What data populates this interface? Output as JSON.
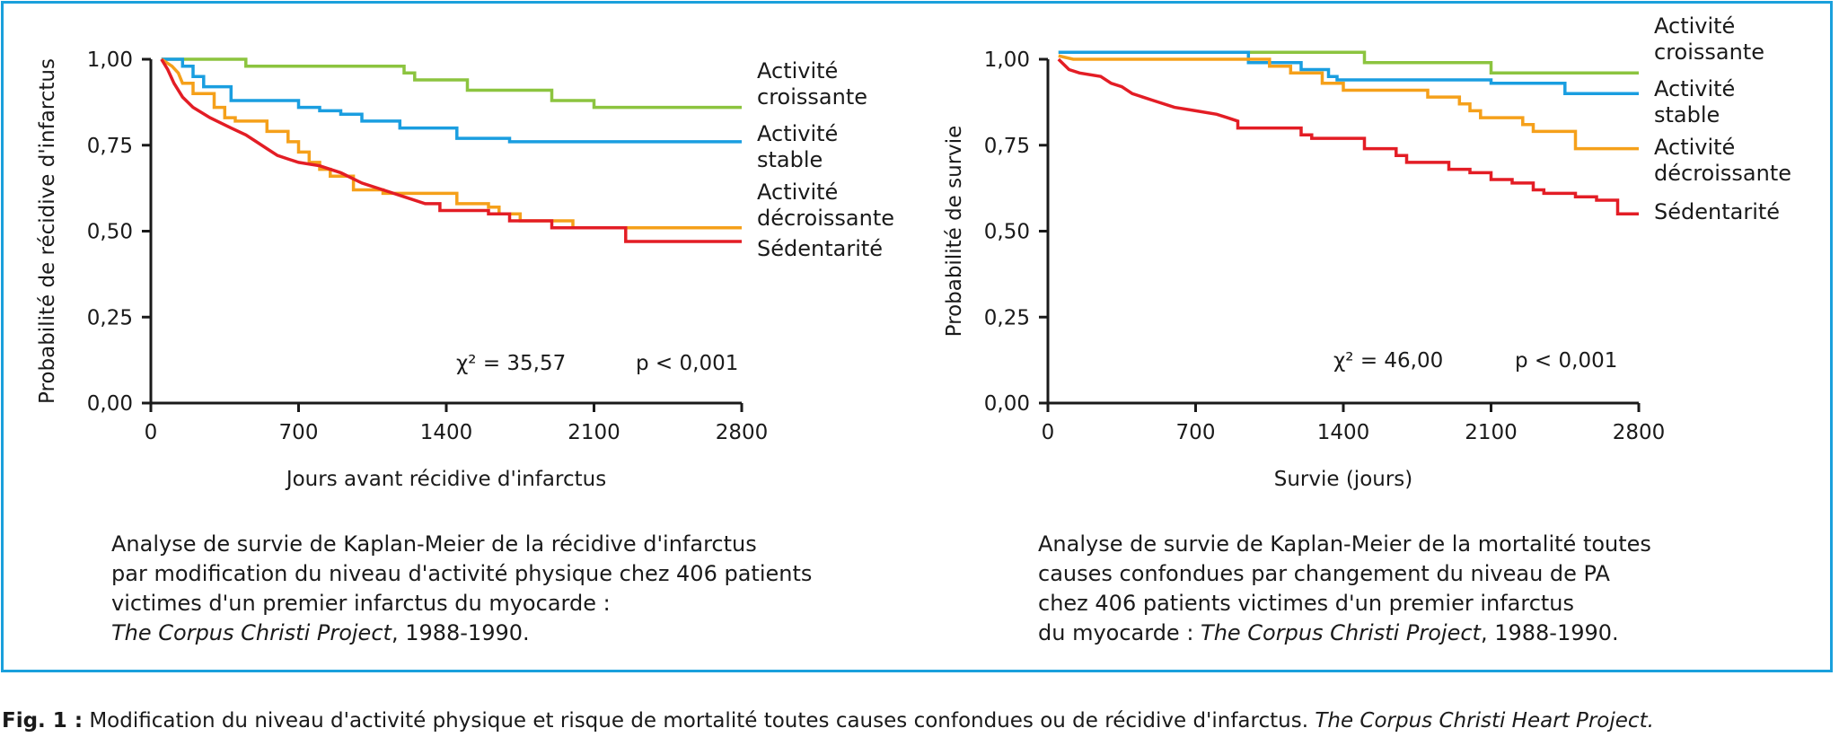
{
  "colors": {
    "frame": "#1aa0dc",
    "green": "#8cc43f",
    "blue": "#1a9ee0",
    "orange": "#f5a01a",
    "red": "#e31d25"
  },
  "chart_data": [
    {
      "type": "line",
      "ylabel": "Probabilité de récidive d'infarctus",
      "xlabel": "Jours avant récidive d'infarctus",
      "xlim": [
        0,
        2800
      ],
      "ylim": [
        0,
        1
      ],
      "xticks": [
        "0",
        "700",
        "1400",
        "2100",
        "2800"
      ],
      "yticks": [
        "0,00",
        "0,25",
        "0,50",
        "0,75",
        "1,00"
      ],
      "stat": "χ² = 35,57",
      "pvalue": "p < 0,001",
      "series": [
        {
          "name": "Activité croissante",
          "color": "#8cc43f",
          "points": [
            [
              50,
              1.0
            ],
            [
              450,
              1.0
            ],
            [
              450,
              0.98
            ],
            [
              1200,
              0.98
            ],
            [
              1200,
              0.96
            ],
            [
              1250,
              0.96
            ],
            [
              1250,
              0.94
            ],
            [
              1500,
              0.94
            ],
            [
              1500,
              0.91
            ],
            [
              1900,
              0.91
            ],
            [
              1900,
              0.88
            ],
            [
              2100,
              0.88
            ],
            [
              2100,
              0.86
            ],
            [
              2800,
              0.86
            ]
          ]
        },
        {
          "name": "Activité stable",
          "color": "#1a9ee0",
          "points": [
            [
              50,
              1.0
            ],
            [
              150,
              1.0
            ],
            [
              150,
              0.98
            ],
            [
              200,
              0.98
            ],
            [
              200,
              0.95
            ],
            [
              250,
              0.95
            ],
            [
              250,
              0.92
            ],
            [
              380,
              0.92
            ],
            [
              380,
              0.88
            ],
            [
              700,
              0.88
            ],
            [
              700,
              0.86
            ],
            [
              800,
              0.86
            ],
            [
              800,
              0.85
            ],
            [
              900,
              0.85
            ],
            [
              900,
              0.84
            ],
            [
              1000,
              0.84
            ],
            [
              1000,
              0.82
            ],
            [
              1180,
              0.82
            ],
            [
              1180,
              0.8
            ],
            [
              1450,
              0.8
            ],
            [
              1450,
              0.77
            ],
            [
              1700,
              0.77
            ],
            [
              1700,
              0.76
            ],
            [
              2800,
              0.76
            ]
          ]
        },
        {
          "name": "Activité décroissante",
          "color": "#f5a01a",
          "points": [
            [
              50,
              1.0
            ],
            [
              100,
              0.98
            ],
            [
              130,
              0.96
            ],
            [
              150,
              0.93
            ],
            [
              200,
              0.93
            ],
            [
              200,
              0.9
            ],
            [
              300,
              0.9
            ],
            [
              300,
              0.86
            ],
            [
              350,
              0.86
            ],
            [
              350,
              0.83
            ],
            [
              400,
              0.83
            ],
            [
              400,
              0.82
            ],
            [
              550,
              0.82
            ],
            [
              550,
              0.79
            ],
            [
              650,
              0.79
            ],
            [
              650,
              0.76
            ],
            [
              700,
              0.76
            ],
            [
              700,
              0.73
            ],
            [
              750,
              0.73
            ],
            [
              750,
              0.7
            ],
            [
              800,
              0.7
            ],
            [
              800,
              0.68
            ],
            [
              850,
              0.68
            ],
            [
              850,
              0.66
            ],
            [
              960,
              0.66
            ],
            [
              960,
              0.62
            ],
            [
              1100,
              0.62
            ],
            [
              1100,
              0.61
            ],
            [
              1450,
              0.61
            ],
            [
              1450,
              0.58
            ],
            [
              1600,
              0.58
            ],
            [
              1600,
              0.57
            ],
            [
              1650,
              0.57
            ],
            [
              1650,
              0.55
            ],
            [
              1750,
              0.55
            ],
            [
              1750,
              0.53
            ],
            [
              2000,
              0.53
            ],
            [
              2000,
              0.51
            ],
            [
              2800,
              0.51
            ]
          ]
        },
        {
          "name": "Sédentarité",
          "color": "#e31d25",
          "points": [
            [
              50,
              1.0
            ],
            [
              80,
              0.97
            ],
            [
              110,
              0.93
            ],
            [
              150,
              0.89
            ],
            [
              200,
              0.86
            ],
            [
              280,
              0.83
            ],
            [
              380,
              0.8
            ],
            [
              450,
              0.78
            ],
            [
              500,
              0.76
            ],
            [
              550,
              0.74
            ],
            [
              600,
              0.72
            ],
            [
              650,
              0.71
            ],
            [
              700,
              0.7
            ],
            [
              800,
              0.69
            ],
            [
              900,
              0.67
            ],
            [
              1000,
              0.64
            ],
            [
              1100,
              0.62
            ],
            [
              1200,
              0.6
            ],
            [
              1300,
              0.58
            ],
            [
              1370,
              0.58
            ],
            [
              1370,
              0.56
            ],
            [
              1600,
              0.56
            ],
            [
              1600,
              0.55
            ],
            [
              1700,
              0.55
            ],
            [
              1700,
              0.53
            ],
            [
              1900,
              0.53
            ],
            [
              1900,
              0.51
            ],
            [
              2250,
              0.51
            ],
            [
              2250,
              0.47
            ],
            [
              2800,
              0.47
            ]
          ]
        }
      ]
    },
    {
      "type": "line",
      "ylabel": "Probabilité de survie",
      "xlabel": "Survie (jours)",
      "xlim": [
        0,
        2800
      ],
      "ylim": [
        0,
        1
      ],
      "xticks": [
        "0",
        "700",
        "1400",
        "2100",
        "2800"
      ],
      "yticks": [
        "0,00",
        "0,25",
        "0,50",
        "0,75",
        "1,00"
      ],
      "stat": "χ² = 46,00",
      "pvalue": "p < 0,001",
      "series": [
        {
          "name": "Activité croissante",
          "color": "#8cc43f",
          "points": [
            [
              50,
              1.02
            ],
            [
              1500,
              1.02
            ],
            [
              1500,
              0.99
            ],
            [
              2100,
              0.99
            ],
            [
              2100,
              0.96
            ],
            [
              2800,
              0.96
            ]
          ]
        },
        {
          "name": "Activité stable",
          "color": "#1a9ee0",
          "points": [
            [
              50,
              1.02
            ],
            [
              950,
              1.02
            ],
            [
              950,
              0.99
            ],
            [
              1200,
              0.99
            ],
            [
              1200,
              0.97
            ],
            [
              1330,
              0.97
            ],
            [
              1330,
              0.95
            ],
            [
              1370,
              0.95
            ],
            [
              1370,
              0.94
            ],
            [
              2100,
              0.94
            ],
            [
              2100,
              0.93
            ],
            [
              2450,
              0.93
            ],
            [
              2450,
              0.9
            ],
            [
              2800,
              0.9
            ]
          ]
        },
        {
          "name": "Activité décroissante",
          "color": "#f5a01a",
          "points": [
            [
              50,
              1.01
            ],
            [
              120,
              1.0
            ],
            [
              1050,
              1.0
            ],
            [
              1050,
              0.98
            ],
            [
              1150,
              0.98
            ],
            [
              1150,
              0.96
            ],
            [
              1300,
              0.96
            ],
            [
              1300,
              0.93
            ],
            [
              1400,
              0.93
            ],
            [
              1400,
              0.91
            ],
            [
              1800,
              0.91
            ],
            [
              1800,
              0.89
            ],
            [
              1950,
              0.89
            ],
            [
              1950,
              0.87
            ],
            [
              2000,
              0.87
            ],
            [
              2000,
              0.85
            ],
            [
              2050,
              0.85
            ],
            [
              2050,
              0.83
            ],
            [
              2250,
              0.83
            ],
            [
              2250,
              0.81
            ],
            [
              2300,
              0.81
            ],
            [
              2300,
              0.79
            ],
            [
              2500,
              0.79
            ],
            [
              2500,
              0.74
            ],
            [
              2800,
              0.74
            ]
          ]
        },
        {
          "name": "Sédentarité",
          "color": "#e31d25",
          "points": [
            [
              50,
              1.0
            ],
            [
              100,
              0.97
            ],
            [
              150,
              0.96
            ],
            [
              250,
              0.95
            ],
            [
              300,
              0.93
            ],
            [
              350,
              0.92
            ],
            [
              400,
              0.9
            ],
            [
              500,
              0.88
            ],
            [
              600,
              0.86
            ],
            [
              700,
              0.85
            ],
            [
              800,
              0.84
            ],
            [
              850,
              0.83
            ],
            [
              900,
              0.82
            ],
            [
              900,
              0.8
            ],
            [
              1200,
              0.8
            ],
            [
              1200,
              0.78
            ],
            [
              1250,
              0.78
            ],
            [
              1250,
              0.77
            ],
            [
              1500,
              0.77
            ],
            [
              1500,
              0.74
            ],
            [
              1650,
              0.74
            ],
            [
              1650,
              0.72
            ],
            [
              1700,
              0.72
            ],
            [
              1700,
              0.7
            ],
            [
              1900,
              0.7
            ],
            [
              1900,
              0.68
            ],
            [
              2000,
              0.68
            ],
            [
              2000,
              0.67
            ],
            [
              2100,
              0.67
            ],
            [
              2100,
              0.65
            ],
            [
              2200,
              0.65
            ],
            [
              2200,
              0.64
            ],
            [
              2300,
              0.64
            ],
            [
              2300,
              0.62
            ],
            [
              2350,
              0.62
            ],
            [
              2350,
              0.61
            ],
            [
              2500,
              0.61
            ],
            [
              2500,
              0.6
            ],
            [
              2600,
              0.6
            ],
            [
              2600,
              0.59
            ],
            [
              2700,
              0.59
            ],
            [
              2700,
              0.55
            ],
            [
              2800,
              0.55
            ]
          ]
        }
      ]
    }
  ],
  "legend_left": {
    "croissante": [
      "Activité",
      "croissante"
    ],
    "stable": [
      "Activité",
      "stable"
    ],
    "decroissante": [
      "Activité",
      "décroissante"
    ],
    "sedentarite": [
      "Sédentarité"
    ]
  },
  "legend_right": {
    "croissante": [
      "Activité",
      "croissante"
    ],
    "stable": [
      "Activité",
      "stable"
    ],
    "decroissante": [
      "Activité",
      "décroissante"
    ],
    "sedentarite": [
      "Sédentarité"
    ]
  },
  "caption_left": {
    "line1": "Analyse de survie de Kaplan-Meier de la récidive d'infarctus",
    "line2": "par modification du niveau d'activité physique chez 406 patients",
    "line3": "victimes d'un premier infarctus du myocarde :",
    "source": "The Corpus Christi Project",
    "years": ", 1988-1990."
  },
  "caption_right": {
    "line1": "Analyse de survie de Kaplan-Meier de la mortalité toutes",
    "line2": "causes confondues par changement du niveau de PA",
    "line3": "chez 406 patients victimes d'un premier infarctus",
    "line4_prefix": "du myocarde : ",
    "source": "The Corpus Christi Project",
    "years": ", 1988-1990."
  },
  "figure_caption": {
    "label": "Fig. 1 :",
    "text": " Modification du niveau d'activité physique et risque de mortalité toutes causes confondues ou de récidive d'infarctus. ",
    "source": "The Corpus Christi Heart Project."
  }
}
